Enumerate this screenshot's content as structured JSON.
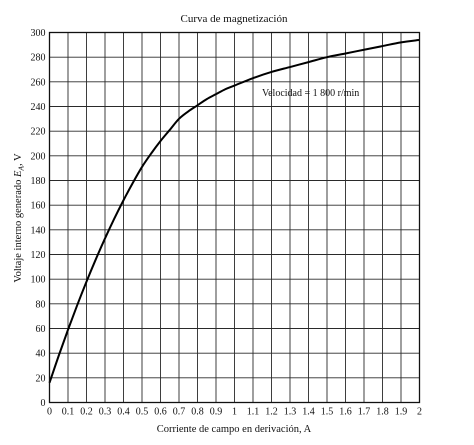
{
  "chart_data": {
    "type": "line",
    "title": "Curva de magnetización",
    "xlabel": "Corriente de campo en derivación, A",
    "ylabel_main": "Voltaje interno generado ",
    "ylabel_var": "E",
    "ylabel_sub": "A",
    "ylabel_unit": ", V",
    "annotation": "Velocidad = 1 800 r/min",
    "xlim": [
      0,
      2
    ],
    "ylim": [
      0,
      300
    ],
    "grid": true,
    "x_ticks": [
      0,
      0.1,
      0.2,
      0.3,
      0.4,
      0.5,
      0.6,
      0.7,
      0.8,
      0.9,
      1,
      1.1,
      1.2,
      1.3,
      1.4,
      1.5,
      1.6,
      1.7,
      1.8,
      1.9,
      2
    ],
    "x_tick_labels": [
      "0",
      "0.1",
      "0.2",
      "0.3",
      "0.4",
      "0.5",
      "0.6",
      "0.7",
      "0.8",
      "0.9",
      "1",
      "1.1",
      "1.2",
      "1.3",
      "1.4",
      "1.5",
      "1.6",
      "1.7",
      "1.8",
      "1.9",
      "2"
    ],
    "y_ticks": [
      0,
      20,
      40,
      60,
      80,
      100,
      120,
      140,
      160,
      180,
      200,
      220,
      240,
      260,
      280,
      300
    ],
    "y_tick_labels": [
      "0",
      "20",
      "40",
      "60",
      "80",
      "100",
      "120",
      "140",
      "160",
      "180",
      "200",
      "220",
      "240",
      "260",
      "280",
      "300"
    ],
    "series": [
      {
        "x": [
          0,
          0.05,
          0.1,
          0.15,
          0.2,
          0.25,
          0.3,
          0.35,
          0.4,
          0.45,
          0.5,
          0.55,
          0.6,
          0.65,
          0.7,
          0.75,
          0.8,
          0.85,
          0.9,
          0.95,
          1.0,
          1.1,
          1.2,
          1.3,
          1.4,
          1.5,
          1.6,
          1.7,
          1.8,
          1.9,
          2.0
        ],
        "y": [
          16,
          38,
          59,
          79,
          98,
          116,
          133,
          149,
          164,
          178,
          191,
          202,
          212,
          221,
          230,
          236,
          241,
          246,
          250,
          254,
          257,
          263,
          268,
          272,
          276,
          280,
          283,
          286,
          289,
          292,
          294
        ]
      }
    ]
  }
}
